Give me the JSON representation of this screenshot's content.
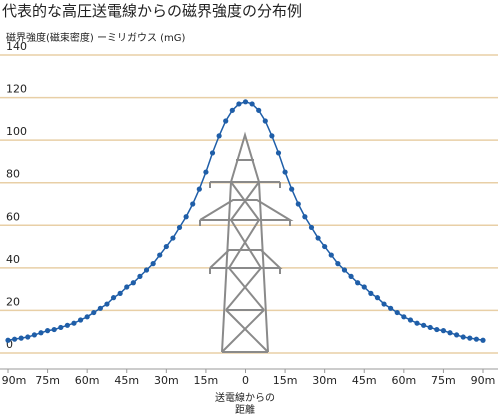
{
  "chart_data": {
    "type": "line",
    "title": "代表的な高圧送電線からの磁界強度の分布例",
    "y_label": "磁界強度(磁束密度) ーミリガウス (mG)",
    "x_label": [
      "送電線からの",
      "距離"
    ],
    "x": [
      -90,
      -87.5,
      -85,
      -82.5,
      -80,
      -77.5,
      -75,
      -72.5,
      -70,
      -67.5,
      -65,
      -62.5,
      -60,
      -57.5,
      -55,
      -52.5,
      -50,
      -47.5,
      -45,
      -42.5,
      -40,
      -37.5,
      -35,
      -32.5,
      -30,
      -27.5,
      -25,
      -22.5,
      -20,
      -17.5,
      -15,
      -12.5,
      -10,
      -7.5,
      -5,
      -2.5,
      0,
      2.5,
      5,
      7.5,
      10,
      12.5,
      15,
      17.5,
      20,
      22.5,
      25,
      27.5,
      30,
      32.5,
      35,
      37.5,
      40,
      42.5,
      45,
      47.5,
      50,
      52.5,
      55,
      57.5,
      60,
      62.5,
      65,
      67.5,
      70,
      72.5,
      75,
      77.5,
      80,
      82.5,
      85,
      87.5,
      90
    ],
    "series": [
      {
        "color": "#1f5ea8",
        "values": [
          6,
          6.5,
          7,
          7.5,
          8.5,
          9.5,
          10.5,
          11,
          12,
          13,
          14,
          15.5,
          17,
          19,
          21,
          23,
          26,
          28,
          31,
          33,
          36,
          39,
          42,
          46,
          50,
          54,
          59,
          64,
          70,
          77,
          85,
          94,
          102,
          109,
          114,
          117,
          118,
          117,
          114,
          109,
          102,
          94,
          85,
          77,
          70,
          64,
          59,
          54,
          50,
          46,
          42,
          39,
          36,
          33,
          31,
          28,
          26,
          23,
          21,
          19,
          17,
          15.5,
          14,
          13,
          12,
          11,
          10.5,
          9.5,
          8.5,
          7.5,
          7,
          6.5,
          6
        ]
      }
    ],
    "xlim": [
      -90,
      90
    ],
    "xticks": [
      {
        "value": -90,
        "label": "90m"
      },
      {
        "value": -75,
        "label": "75m"
      },
      {
        "value": -60,
        "label": "60m"
      },
      {
        "value": -45,
        "label": "45m"
      },
      {
        "value": -30,
        "label": "30m"
      },
      {
        "value": -15,
        "label": "15m"
      },
      0,
      {
        "value": 15,
        "label": "15m"
      },
      {
        "value": 30,
        "label": "30m"
      },
      {
        "value": 45,
        "label": "45m"
      },
      {
        "value": 60,
        "label": "60m"
      },
      {
        "value": 75,
        "label": "75m"
      },
      {
        "value": 90,
        "label": "90m"
      }
    ],
    "ylim": [
      0,
      140
    ],
    "yticks": [
      0,
      20,
      40,
      60,
      80,
      100,
      120,
      140
    ],
    "grid": true,
    "grid_color": "#e8cfa6"
  }
}
